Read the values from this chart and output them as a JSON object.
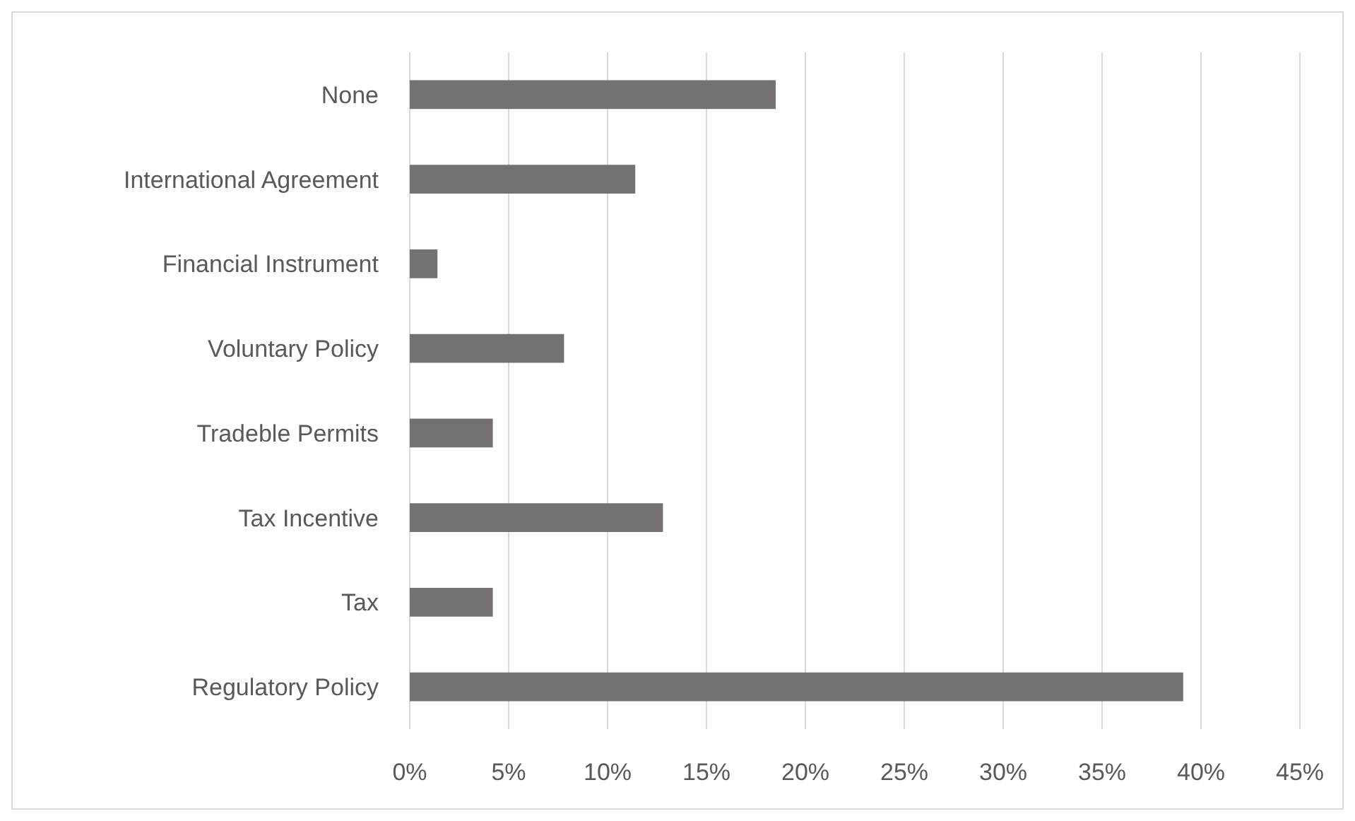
{
  "chart_data": {
    "type": "bar",
    "orientation": "horizontal",
    "categories": [
      "None",
      "International Agreement",
      "Financial Instrument",
      "Voluntary Policy",
      "Tradeble Permits",
      "Tax Incentive",
      "Tax",
      "Regulatory Policy"
    ],
    "values": [
      18.5,
      11.4,
      1.4,
      7.8,
      4.2,
      12.8,
      4.2,
      39.1
    ],
    "color": "#767171",
    "xlim": [
      0,
      45
    ],
    "xticks": [
      {
        "value": 0,
        "label": "0%"
      },
      {
        "value": 5,
        "label": "5%"
      },
      {
        "value": 10,
        "label": "10%"
      },
      {
        "value": 15,
        "label": "15%"
      },
      {
        "value": 20,
        "label": "20%"
      },
      {
        "value": 25,
        "label": "25%"
      },
      {
        "value": 30,
        "label": "30%"
      },
      {
        "value": 35,
        "label": "35%"
      },
      {
        "value": 40,
        "label": "40%"
      },
      {
        "value": 45,
        "label": "45%"
      }
    ],
    "grid": "x"
  }
}
